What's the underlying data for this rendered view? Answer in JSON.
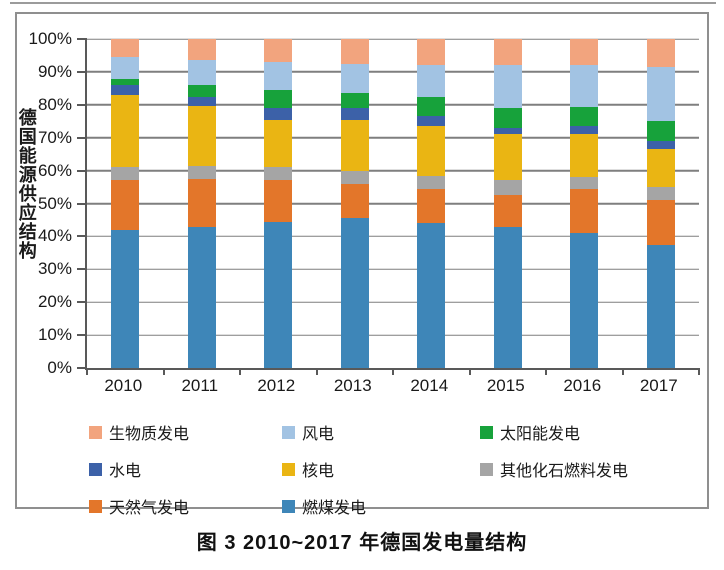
{
  "figure": {
    "caption": "图 3  2010~2017 年德国发电量结构",
    "border_color": "#8f8f8f",
    "top_rule_color": "#9b9b9b"
  },
  "chart_data": {
    "type": "bar",
    "stacked": true,
    "title": "",
    "xlabel": "",
    "ylabel": "德国能源供应结构",
    "unit": "%",
    "ylim": [
      0,
      100
    ],
    "y_tick_step": 10,
    "y_tick_labels": [
      "0%",
      "10%",
      "20%",
      "30%",
      "40%",
      "50%",
      "60%",
      "70%",
      "80%",
      "90%",
      "100%"
    ],
    "grid": true,
    "legend_position": "bottom",
    "axis_color": "#595959",
    "gridline_color": "#7f7f7f",
    "categories": [
      "2010",
      "2011",
      "2012",
      "2013",
      "2014",
      "2015",
      "2016",
      "2017"
    ],
    "series": [
      {
        "key": "coal",
        "name": "燃煤发电",
        "color": "#3E86B8",
        "values": [
          42,
          43,
          44.5,
          45.5,
          44,
          43,
          41,
          37.5
        ]
      },
      {
        "key": "natural-gas",
        "name": "天然气发电",
        "color": "#E3762A",
        "values": [
          15,
          14.5,
          12.5,
          10.5,
          10.5,
          9.5,
          13.5,
          13.5
        ]
      },
      {
        "key": "other-fossil",
        "name": "其他化石燃料发电",
        "color": "#A5A5A5",
        "values": [
          4,
          4,
          4,
          4,
          4,
          4.5,
          3.5,
          4
        ]
      },
      {
        "key": "nuclear",
        "name": "核电",
        "color": "#EAB513",
        "values": [
          22,
          18,
          14.5,
          15.5,
          15,
          14,
          13,
          11.5
        ]
      },
      {
        "key": "hydro",
        "name": "水电",
        "color": "#3C61A8",
        "values": [
          3,
          3,
          3.5,
          3.5,
          3,
          2,
          2.5,
          2.5
        ]
      },
      {
        "key": "solar",
        "name": "太阳能发电",
        "color": "#17A23B",
        "values": [
          2,
          3.5,
          5.5,
          4.5,
          6,
          6,
          6,
          6
        ]
      },
      {
        "key": "wind",
        "name": "风电",
        "color": "#A2C3E3",
        "values": [
          6.5,
          7.5,
          8.5,
          9,
          9.5,
          13,
          12.5,
          16.5
        ]
      },
      {
        "key": "biomass",
        "name": "生物质发电",
        "color": "#F2A47E",
        "values": [
          5.5,
          6.5,
          7,
          7.5,
          8,
          8,
          8,
          8.5
        ]
      }
    ],
    "legend_items": [
      "biomass",
      "wind",
      "solar",
      "hydro",
      "nuclear",
      "other-fossil",
      "natural-gas",
      "coal"
    ]
  }
}
